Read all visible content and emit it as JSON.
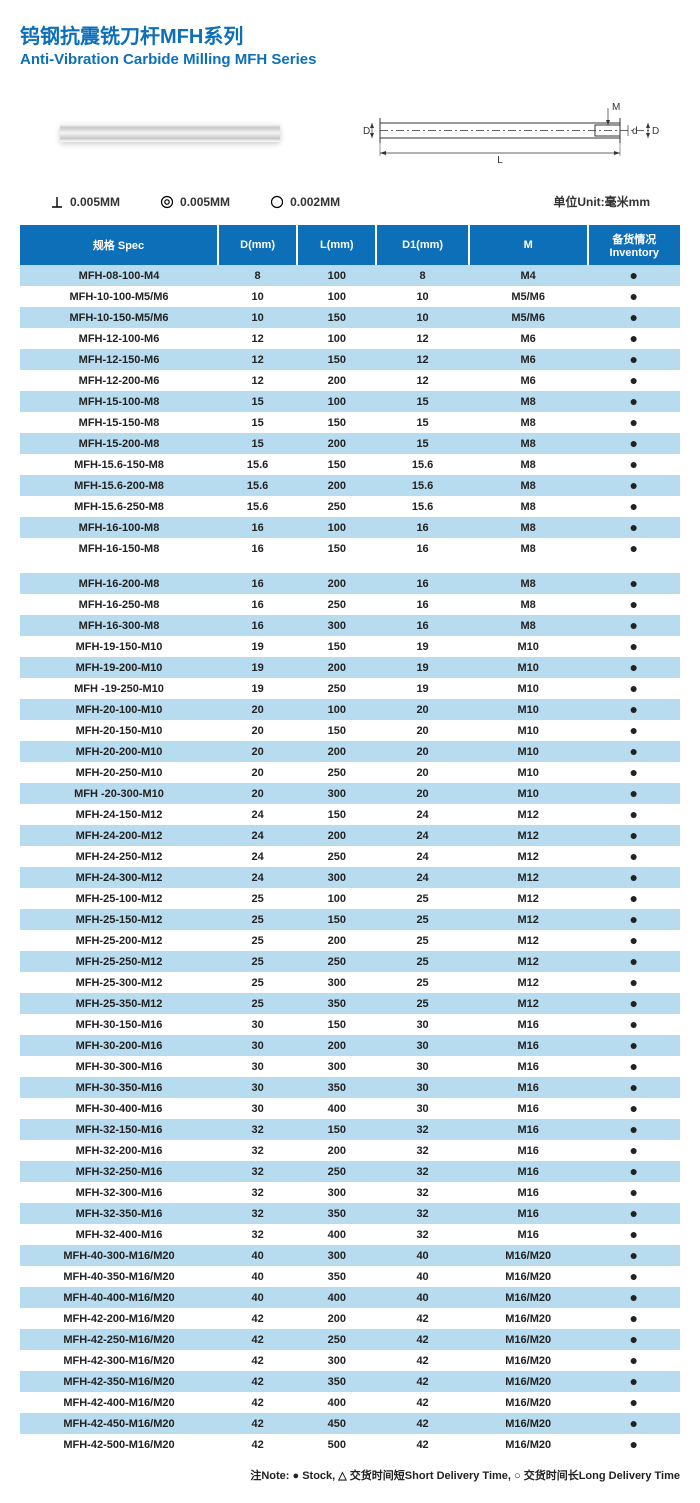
{
  "title_cn": "钨钢抗震铣刀杆MFH系列",
  "title_en": "Anti-Vibration Carbide Milling MFH Series",
  "colors": {
    "brand_blue": "#0d6fb8",
    "row_light": "#ffffff",
    "row_dark": "#b8dcef"
  },
  "diagram_labels": {
    "D": "D",
    "L": "L",
    "d": "d",
    "D1": "D1",
    "M": "M"
  },
  "tolerances": {
    "perp_val": "0.005MM",
    "conc_val": "0.005MM",
    "round_val": "0.002MM",
    "unit_label": "单位Unit:毫米mm"
  },
  "headers": {
    "spec": "规格 Spec",
    "D": "D(mm)",
    "L": "L(mm)",
    "D1": "D1(mm)",
    "M": "M",
    "inventory_cn": "备货情况",
    "inventory_en": "Inventory"
  },
  "rows1": [
    {
      "spec": "MFH-08-100-M4",
      "D": "8",
      "L": "100",
      "D1": "8",
      "M": "M4",
      "inv": "●"
    },
    {
      "spec": "MFH-10-100-M5/M6",
      "D": "10",
      "L": "100",
      "D1": "10",
      "M": "M5/M6",
      "inv": "●"
    },
    {
      "spec": "MFH-10-150-M5/M6",
      "D": "10",
      "L": "150",
      "D1": "10",
      "M": "M5/M6",
      "inv": "●"
    },
    {
      "spec": "MFH-12-100-M6",
      "D": "12",
      "L": "100",
      "D1": "12",
      "M": "M6",
      "inv": "●"
    },
    {
      "spec": "MFH-12-150-M6",
      "D": "12",
      "L": "150",
      "D1": "12",
      "M": "M6",
      "inv": "●"
    },
    {
      "spec": "MFH-12-200-M6",
      "D": "12",
      "L": "200",
      "D1": "12",
      "M": "M6",
      "inv": "●"
    },
    {
      "spec": "MFH-15-100-M8",
      "D": "15",
      "L": "100",
      "D1": "15",
      "M": "M8",
      "inv": "●"
    },
    {
      "spec": "MFH-15-150-M8",
      "D": "15",
      "L": "150",
      "D1": "15",
      "M": "M8",
      "inv": "●"
    },
    {
      "spec": "MFH-15-200-M8",
      "D": "15",
      "L": "200",
      "D1": "15",
      "M": "M8",
      "inv": "●"
    },
    {
      "spec": "MFH-15.6-150-M8",
      "D": "15.6",
      "L": "150",
      "D1": "15.6",
      "M": "M8",
      "inv": "●"
    },
    {
      "spec": "MFH-15.6-200-M8",
      "D": "15.6",
      "L": "200",
      "D1": "15.6",
      "M": "M8",
      "inv": "●"
    },
    {
      "spec": "MFH-15.6-250-M8",
      "D": "15.6",
      "L": "250",
      "D1": "15.6",
      "M": "M8",
      "inv": "●"
    },
    {
      "spec": "MFH-16-100-M8",
      "D": "16",
      "L": "100",
      "D1": "16",
      "M": "M8",
      "inv": "●"
    },
    {
      "spec": "MFH-16-150-M8",
      "D": "16",
      "L": "150",
      "D1": "16",
      "M": "M8",
      "inv": "●"
    }
  ],
  "rows2": [
    {
      "spec": "MFH-16-200-M8",
      "D": "16",
      "L": "200",
      "D1": "16",
      "M": "M8",
      "inv": "●"
    },
    {
      "spec": "MFH-16-250-M8",
      "D": "16",
      "L": "250",
      "D1": "16",
      "M": "M8",
      "inv": "●"
    },
    {
      "spec": "MFH-16-300-M8",
      "D": "16",
      "L": "300",
      "D1": "16",
      "M": "M8",
      "inv": "●"
    },
    {
      "spec": "MFH-19-150-M10",
      "D": "19",
      "L": "150",
      "D1": "19",
      "M": "M10",
      "inv": "●"
    },
    {
      "spec": "MFH-19-200-M10",
      "D": "19",
      "L": "200",
      "D1": "19",
      "M": "M10",
      "inv": "●"
    },
    {
      "spec": "MFH -19-250-M10",
      "D": "19",
      "L": "250",
      "D1": "19",
      "M": "M10",
      "inv": "●"
    },
    {
      "spec": "MFH-20-100-M10",
      "D": "20",
      "L": "100",
      "D1": "20",
      "M": "M10",
      "inv": "●"
    },
    {
      "spec": "MFH-20-150-M10",
      "D": "20",
      "L": "150",
      "D1": "20",
      "M": "M10",
      "inv": "●"
    },
    {
      "spec": "MFH-20-200-M10",
      "D": "20",
      "L": "200",
      "D1": "20",
      "M": "M10",
      "inv": "●"
    },
    {
      "spec": "MFH-20-250-M10",
      "D": "20",
      "L": "250",
      "D1": "20",
      "M": "M10",
      "inv": "●"
    },
    {
      "spec": "MFH -20-300-M10",
      "D": "20",
      "L": "300",
      "D1": "20",
      "M": "M10",
      "inv": "●"
    },
    {
      "spec": "MFH-24-150-M12",
      "D": "24",
      "L": "150",
      "D1": "24",
      "M": "M12",
      "inv": "●"
    },
    {
      "spec": "MFH-24-200-M12",
      "D": "24",
      "L": "200",
      "D1": "24",
      "M": "M12",
      "inv": "●"
    },
    {
      "spec": "MFH-24-250-M12",
      "D": "24",
      "L": "250",
      "D1": "24",
      "M": "M12",
      "inv": "●"
    },
    {
      "spec": "MFH-24-300-M12",
      "D": "24",
      "L": "300",
      "D1": "24",
      "M": "M12",
      "inv": "●"
    },
    {
      "spec": "MFH-25-100-M12",
      "D": "25",
      "L": "100",
      "D1": "25",
      "M": "M12",
      "inv": "●"
    },
    {
      "spec": "MFH-25-150-M12",
      "D": "25",
      "L": "150",
      "D1": "25",
      "M": "M12",
      "inv": "●"
    },
    {
      "spec": "MFH-25-200-M12",
      "D": "25",
      "L": "200",
      "D1": "25",
      "M": "M12",
      "inv": "●"
    },
    {
      "spec": "MFH-25-250-M12",
      "D": "25",
      "L": "250",
      "D1": "25",
      "M": "M12",
      "inv": "●"
    },
    {
      "spec": "MFH-25-300-M12",
      "D": "25",
      "L": "300",
      "D1": "25",
      "M": "M12",
      "inv": "●"
    },
    {
      "spec": "MFH-25-350-M12",
      "D": "25",
      "L": "350",
      "D1": "25",
      "M": "M12",
      "inv": "●"
    },
    {
      "spec": "MFH-30-150-M16",
      "D": "30",
      "L": "150",
      "D1": "30",
      "M": "M16",
      "inv": "●"
    },
    {
      "spec": "MFH-30-200-M16",
      "D": "30",
      "L": "200",
      "D1": "30",
      "M": "M16",
      "inv": "●"
    },
    {
      "spec": "MFH-30-300-M16",
      "D": "30",
      "L": "300",
      "D1": "30",
      "M": "M16",
      "inv": "●"
    },
    {
      "spec": "MFH-30-350-M16",
      "D": "30",
      "L": "350",
      "D1": "30",
      "M": "M16",
      "inv": "●"
    },
    {
      "spec": "MFH-30-400-M16",
      "D": "30",
      "L": "400",
      "D1": "30",
      "M": "M16",
      "inv": "●"
    },
    {
      "spec": "MFH-32-150-M16",
      "D": "32",
      "L": "150",
      "D1": "32",
      "M": "M16",
      "inv": "●"
    },
    {
      "spec": "MFH-32-200-M16",
      "D": "32",
      "L": "200",
      "D1": "32",
      "M": "M16",
      "inv": "●"
    },
    {
      "spec": "MFH-32-250-M16",
      "D": "32",
      "L": "250",
      "D1": "32",
      "M": "M16",
      "inv": "●"
    },
    {
      "spec": "MFH-32-300-M16",
      "D": "32",
      "L": "300",
      "D1": "32",
      "M": "M16",
      "inv": "●"
    },
    {
      "spec": "MFH-32-350-M16",
      "D": "32",
      "L": "350",
      "D1": "32",
      "M": "M16",
      "inv": "●"
    },
    {
      "spec": "MFH-32-400-M16",
      "D": "32",
      "L": "400",
      "D1": "32",
      "M": "M16",
      "inv": "●"
    },
    {
      "spec": "MFH-40-300-M16/M20",
      "D": "40",
      "L": "300",
      "D1": "40",
      "M": "M16/M20",
      "inv": "●"
    },
    {
      "spec": "MFH-40-350-M16/M20",
      "D": "40",
      "L": "350",
      "D1": "40",
      "M": "M16/M20",
      "inv": "●"
    },
    {
      "spec": "MFH-40-400-M16/M20",
      "D": "40",
      "L": "400",
      "D1": "40",
      "M": "M16/M20",
      "inv": "●"
    },
    {
      "spec": "MFH-42-200-M16/M20",
      "D": "42",
      "L": "200",
      "D1": "42",
      "M": "M16/M20",
      "inv": "●"
    },
    {
      "spec": "MFH-42-250-M16/M20",
      "D": "42",
      "L": "250",
      "D1": "42",
      "M": "M16/M20",
      "inv": "●"
    },
    {
      "spec": "MFH-42-300-M16/M20",
      "D": "42",
      "L": "300",
      "D1": "42",
      "M": "M16/M20",
      "inv": "●"
    },
    {
      "spec": "MFH-42-350-M16/M20",
      "D": "42",
      "L": "350",
      "D1": "42",
      "M": "M16/M20",
      "inv": "●"
    },
    {
      "spec": "MFH-42-400-M16/M20",
      "D": "42",
      "L": "400",
      "D1": "42",
      "M": "M16/M20",
      "inv": "●"
    },
    {
      "spec": "MFH-42-450-M16/M20",
      "D": "42",
      "L": "450",
      "D1": "42",
      "M": "M16/M20",
      "inv": "●"
    },
    {
      "spec": "MFH-42-500-M16/M20",
      "D": "42",
      "L": "500",
      "D1": "42",
      "M": "M16/M20",
      "inv": "●"
    }
  ],
  "note": "注Note:  ● Stock,  △ 交货时间短Short Delivery Time,  ○ 交货时间长Long Delivery Time",
  "table_style": {
    "col_widths_pct": [
      30,
      12,
      12,
      14,
      18,
      14
    ],
    "stripe_start1": "dark",
    "stripe_start2": "dark"
  }
}
